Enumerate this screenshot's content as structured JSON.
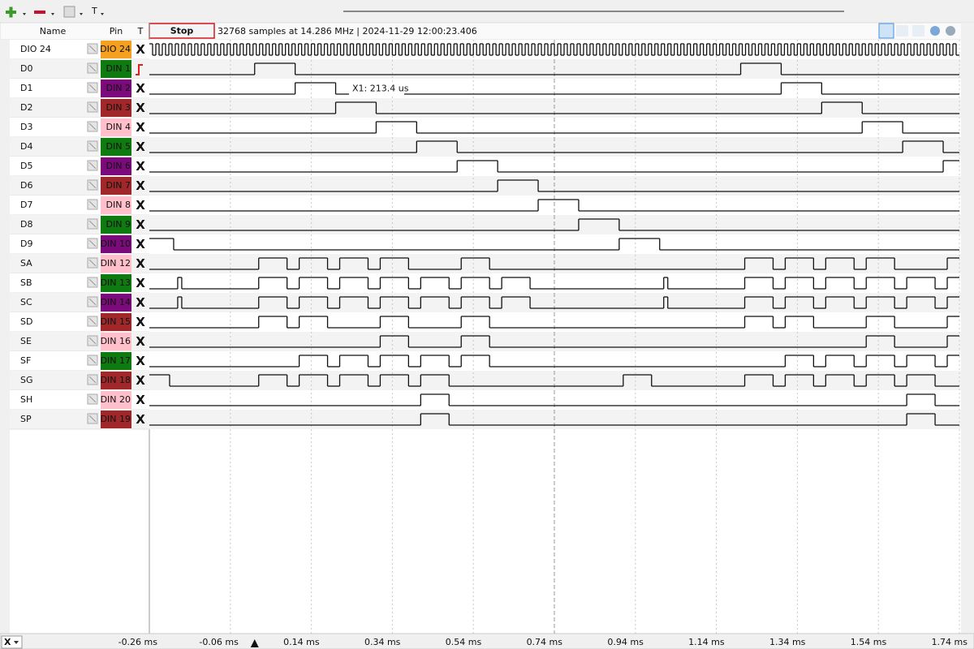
{
  "toolbar": {
    "text_tool": "T"
  },
  "header": {
    "name_col": "Name",
    "pin_col": "Pin",
    "trigger_col": "T",
    "stop_button": "Stop",
    "info": "32768 samples at 14.286 MHz | 2024-11-29 12:00:23.406",
    "cursor_label": "X1: 213.4 us"
  },
  "time_axis": {
    "xlim": [
      -0.26,
      1.74
    ],
    "trigger_position": 0,
    "ticks": [
      {
        "value": -0.26,
        "label": "-0.26 ms"
      },
      {
        "value": -0.06,
        "label": "-0.06 ms"
      },
      {
        "value": 0.14,
        "label": "0.14 ms"
      },
      {
        "value": 0.34,
        "label": "0.34 ms"
      },
      {
        "value": 0.54,
        "label": "0.54 ms"
      },
      {
        "value": 0.74,
        "label": "0.74 ms"
      },
      {
        "value": 0.94,
        "label": "0.94 ms"
      },
      {
        "value": 1.14,
        "label": "1.14 ms"
      },
      {
        "value": 1.34,
        "label": "1.34 ms"
      },
      {
        "value": 1.54,
        "label": "1.54 ms"
      },
      {
        "value": 1.74,
        "label": "1.74 ms"
      }
    ],
    "selector": "X"
  },
  "rows": [
    {
      "name": "DIO 24",
      "pin": "DIO 24",
      "pin_color": "#f5a020",
      "pin_text_color": "#5a2a00",
      "trigger": "X",
      "level0": 1,
      "clock_period": 0.016
    },
    {
      "name": "D0",
      "pin": "DIN 1",
      "pin_color": "#0f7a0f",
      "pin_text_color": "#ffffff",
      "level0": 0,
      "edges": [
        0,
        0.1,
        1.2,
        1.3
      ]
    },
    {
      "name": "D1",
      "pin": "DIN 2",
      "pin_color": "#7b0a7b",
      "pin_text_color": "#ffffff",
      "trigger": "X",
      "level0": 0,
      "edges": [
        0.1,
        0.2,
        1.3,
        1.4
      ]
    },
    {
      "name": "D2",
      "pin": "DIN 3",
      "pin_color": "#a0282a",
      "pin_text_color": "#ffffff",
      "trigger": "X",
      "level0": 0,
      "edges": [
        0.2,
        0.3,
        1.4,
        1.5
      ]
    },
    {
      "name": "D3",
      "pin": "DIN 4",
      "pin_color": "#ffc0cb",
      "pin_text_color": "#7a1020",
      "trigger": "X",
      "level0": 0,
      "edges": [
        0.3,
        0.4,
        1.5,
        1.6
      ]
    },
    {
      "name": "D4",
      "pin": "DIN 5",
      "pin_color": "#0f7a0f",
      "pin_text_color": "#ffffff",
      "trigger": "X",
      "level0": 0,
      "edges": [
        0.4,
        0.5,
        1.6,
        1.7
      ]
    },
    {
      "name": "D5",
      "pin": "DIN 6",
      "pin_color": "#7b0a7b",
      "pin_text_color": "#ffffff",
      "trigger": "X",
      "level0": 0,
      "edges": [
        0.5,
        0.6,
        1.7
      ]
    },
    {
      "name": "D6",
      "pin": "DIN 7",
      "pin_color": "#a0282a",
      "pin_text_color": "#ffffff",
      "trigger": "X",
      "level0": 0,
      "edges": [
        0.6,
        0.7
      ]
    },
    {
      "name": "D7",
      "pin": "DIN 8",
      "pin_color": "#ffc0cb",
      "pin_text_color": "#7a1020",
      "trigger": "X",
      "level0": 0,
      "edges": [
        0.7,
        0.8
      ]
    },
    {
      "name": "D8",
      "pin": "DIN 9",
      "pin_color": "#0f7a0f",
      "pin_text_color": "#ffffff",
      "trigger": "X",
      "level0": 0,
      "edges": [
        0.8,
        0.9
      ]
    },
    {
      "name": "D9",
      "pin": "DIN 10",
      "pin_color": "#7b0a7b",
      "pin_text_color": "#ffffff",
      "trigger": "X",
      "level0": 1,
      "edges": [
        -0.2,
        0.9,
        1.0
      ]
    },
    {
      "name": "SA",
      "pin": "DIN 12",
      "pin_color": "#ffc0cb",
      "pin_text_color": "#7a1020",
      "trigger": "X",
      "level0": 0,
      "edges": [
        0.01,
        0.08,
        0.11,
        0.18,
        0.21,
        0.28,
        0.31,
        0.38,
        0.51,
        0.58,
        1.21,
        1.28,
        1.31,
        1.38,
        1.41,
        1.48,
        1.51,
        1.58,
        1.71
      ]
    },
    {
      "name": "SB",
      "pin": "DIN 13",
      "pin_color": "#0f7a0f",
      "pin_text_color": "#ffffff",
      "trigger": "X",
      "level0": 0,
      "edges": [
        -0.19,
        -0.18,
        0.01,
        0.08,
        0.11,
        0.18,
        0.21,
        0.28,
        0.31,
        0.38,
        0.41,
        0.48,
        0.51,
        0.58,
        0.61,
        0.68,
        1.01,
        1.02,
        1.21,
        1.28,
        1.31,
        1.38,
        1.41,
        1.48,
        1.51,
        1.58,
        1.61,
        1.68,
        1.71
      ]
    },
    {
      "name": "SC",
      "pin": "DIN 14",
      "pin_color": "#7b0a7b",
      "pin_text_color": "#ffffff",
      "trigger": "X",
      "level0": 0,
      "edges": [
        -0.19,
        -0.18,
        0.01,
        0.08,
        0.11,
        0.18,
        0.21,
        0.28,
        0.31,
        0.38,
        0.41,
        0.48,
        0.51,
        0.58,
        0.61,
        0.68,
        1.01,
        1.02,
        1.21,
        1.28,
        1.31,
        1.38,
        1.41,
        1.48,
        1.51,
        1.58,
        1.61,
        1.68,
        1.71
      ]
    },
    {
      "name": "SD",
      "pin": "DIN 15",
      "pin_color": "#a0282a",
      "pin_text_color": "#ffffff",
      "trigger": "X",
      "level0": 0,
      "edges": [
        0.01,
        0.08,
        0.11,
        0.18,
        0.31,
        0.38,
        0.51,
        0.58,
        1.21,
        1.28,
        1.31,
        1.38,
        1.51,
        1.58,
        1.71
      ]
    },
    {
      "name": "SE",
      "pin": "DIN 16",
      "pin_color": "#ffc0cb",
      "pin_text_color": "#7a1020",
      "trigger": "X",
      "level0": 0,
      "edges": [
        0.31,
        0.38,
        0.51,
        0.58,
        1.51,
        1.58,
        1.71
      ]
    },
    {
      "name": "SF",
      "pin": "DIN 17",
      "pin_color": "#0f7a0f",
      "pin_text_color": "#ffffff",
      "trigger": "X",
      "level0": 0,
      "edges": [
        0.11,
        0.18,
        0.21,
        0.28,
        0.31,
        0.38,
        0.41,
        0.48,
        0.51,
        0.58,
        1.31,
        1.38,
        1.41,
        1.48,
        1.51,
        1.58,
        1.61,
        1.68,
        1.71
      ]
    },
    {
      "name": "SG",
      "pin": "DIN 18",
      "pin_color": "#a0282a",
      "pin_text_color": "#ffffff",
      "trigger": "X",
      "level0": 1,
      "edges": [
        -0.21,
        0.01,
        0.08,
        0.11,
        0.18,
        0.21,
        0.28,
        0.31,
        0.38,
        0.41,
        0.48,
        0.91,
        0.98,
        1.21,
        1.28,
        1.31,
        1.38,
        1.41,
        1.48,
        1.51,
        1.58,
        1.61,
        1.68
      ]
    },
    {
      "name": "SH",
      "pin": "DIN 20",
      "pin_color": "#ffc0cb",
      "pin_text_color": "#7a1020",
      "trigger": "X",
      "level0": 0,
      "edges": [
        0.41,
        0.48,
        1.61,
        1.68
      ]
    },
    {
      "name": "SP",
      "pin": "DIN 19",
      "pin_color": "#a0282a",
      "pin_text_color": "#ffffff",
      "trigger": "X",
      "level0": 0,
      "edges": [
        0.41,
        0.48,
        1.61,
        1.68
      ]
    }
  ]
}
